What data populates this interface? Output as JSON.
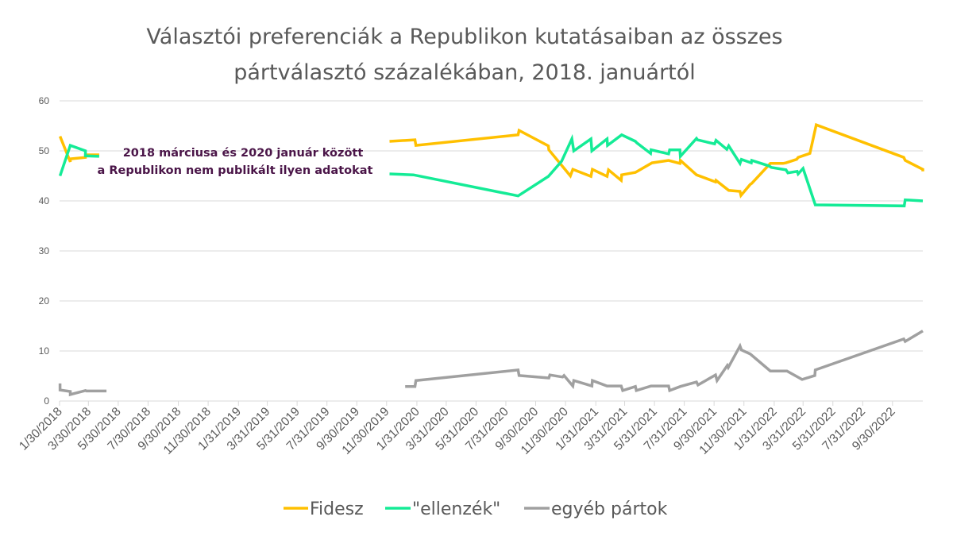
{
  "chart_data": {
    "type": "line",
    "title": [
      "Választói preferenciák a Republikon kutatásaiban az összes",
      "pártválasztó százalékában, 2018. januártól"
    ],
    "xlabel": "",
    "ylabel": "",
    "ylim": [
      0,
      60
    ],
    "yticks": [
      0,
      10,
      20,
      30,
      40,
      50,
      60
    ],
    "xlim": [
      "2018-01-30",
      "2022-12-01"
    ],
    "xtick_labels": [
      "1/30/2018",
      "3/30/2018",
      "5/30/2018",
      "7/30/2018",
      "9/30/2018",
      "11/30/2018",
      "1/31/2019",
      "3/31/2019",
      "5/31/2019",
      "7/31/2019",
      "9/30/2019",
      "11/30/2019",
      "1/31/2020",
      "3/31/2020",
      "5/31/2020",
      "7/31/2020",
      "9/30/2020",
      "11/30/2020",
      "1/31/2021",
      "3/31/2021",
      "5/31/2021",
      "7/31/2021",
      "9/30/2021",
      "11/30/2021",
      "1/31/2022",
      "3/31/2022",
      "5/31/2022",
      "7/31/2022",
      "9/30/2022"
    ],
    "grid": true,
    "legend": "bottom",
    "annotation": [
      "2018 márciusa és 2020 január között",
      "a Republikon nem publikált ilyen adatokat"
    ],
    "series": [
      {
        "name": "Fidesz",
        "color": "#FFC000",
        "segments": [
          [
            [
              "2018-01-31",
              52.9
            ],
            [
              "2018-02-21",
              47.8
            ],
            [
              "2018-02-21",
              48.4
            ],
            [
              "2018-03-24",
              48.7
            ],
            [
              "2018-03-24",
              49.2
            ],
            [
              "2018-04-21",
              49.2
            ]
          ],
          [
            [
              "2019-12-06",
              51.9
            ],
            [
              "2020-01-27",
              52.2
            ],
            [
              "2020-01-29",
              51.1
            ],
            [
              "2020-08-25",
              53.2
            ],
            [
              "2020-08-27",
              54.1
            ],
            [
              "2020-10-26",
              51.0
            ],
            [
              "2020-10-27",
              50.2
            ],
            [
              "2020-12-10",
              45.0
            ],
            [
              "2020-12-15",
              46.3
            ],
            [
              "2021-01-21",
              44.9
            ],
            [
              "2021-01-24",
              46.3
            ],
            [
              "2021-02-23",
              44.9
            ],
            [
              "2021-02-26",
              46.2
            ],
            [
              "2021-03-24",
              44.1
            ],
            [
              "2021-03-25",
              45.2
            ],
            [
              "2021-04-22",
              45.7
            ],
            [
              "2021-05-26",
              47.6
            ],
            [
              "2021-06-29",
              48.1
            ],
            [
              "2021-07-22",
              47.5
            ],
            [
              "2021-07-23",
              48.1
            ],
            [
              "2021-08-25",
              45.2
            ],
            [
              "2021-10-03",
              43.8
            ],
            [
              "2021-10-04",
              44.1
            ],
            [
              "2021-10-30",
              42.1
            ],
            [
              "2021-11-22",
              41.9
            ],
            [
              "2021-11-24",
              41.1
            ],
            [
              "2021-12-13",
              43.3
            ],
            [
              "2021-12-16",
              43.5
            ],
            [
              "2022-01-23",
              47.5
            ],
            [
              "2022-02-18",
              47.5
            ],
            [
              "2022-02-24",
              47.6
            ],
            [
              "2022-03-18",
              48.3
            ],
            [
              "2022-03-21",
              48.7
            ],
            [
              "2022-04-14",
              49.5
            ],
            [
              "2022-04-27",
              55.2
            ],
            [
              "2022-10-23",
              48.7
            ],
            [
              "2022-10-26",
              48.1
            ],
            [
              "2022-12-01",
              46.3
            ],
            [
              "2022-12-01",
              45.9
            ]
          ]
        ]
      },
      {
        "name": "\"ellenzék\"",
        "color": "#14EB96",
        "segments": [
          [
            [
              "2018-01-31",
              45.0
            ],
            [
              "2018-02-21",
              51.1
            ],
            [
              "2018-03-24",
              50.0
            ],
            [
              "2018-03-24",
              49.0
            ],
            [
              "2018-04-21",
              48.9
            ]
          ],
          [
            [
              "2019-12-06",
              45.4
            ],
            [
              "2020-01-24",
              45.2
            ],
            [
              "2020-08-25",
              41.0
            ],
            [
              "2020-10-26",
              44.9
            ],
            [
              "2020-11-22",
              47.9
            ],
            [
              "2020-12-13",
              52.4
            ],
            [
              "2020-12-17",
              50.0
            ],
            [
              "2021-01-21",
              52.4
            ],
            [
              "2021-01-23",
              50.0
            ],
            [
              "2021-02-23",
              52.4
            ],
            [
              "2021-02-24",
              51.1
            ],
            [
              "2021-03-25",
              53.2
            ],
            [
              "2021-04-22",
              51.9
            ],
            [
              "2021-04-25",
              51.6
            ],
            [
              "2021-05-23",
              49.5
            ],
            [
              "2021-05-24",
              50.2
            ],
            [
              "2021-06-29",
              49.4
            ],
            [
              "2021-07-01",
              50.2
            ],
            [
              "2021-07-22",
              50.2
            ],
            [
              "2021-07-23",
              48.9
            ],
            [
              "2021-08-25",
              52.5
            ],
            [
              "2021-08-27",
              52.2
            ],
            [
              "2021-10-01",
              51.4
            ],
            [
              "2021-10-04",
              52.1
            ],
            [
              "2021-10-26",
              50.3
            ],
            [
              "2021-10-30",
              51.0
            ],
            [
              "2021-11-22",
              47.5
            ],
            [
              "2021-11-25",
              48.3
            ],
            [
              "2021-12-15",
              47.6
            ],
            [
              "2021-12-16",
              48.1
            ],
            [
              "2022-01-20",
              47.0
            ],
            [
              "2022-01-25",
              46.7
            ],
            [
              "2022-02-24",
              46.2
            ],
            [
              "2022-02-28",
              45.6
            ],
            [
              "2022-03-19",
              45.9
            ],
            [
              "2022-03-21",
              45.4
            ],
            [
              "2022-03-31",
              46.5
            ],
            [
              "2022-04-25",
              39.2
            ],
            [
              "2022-10-24",
              39.0
            ],
            [
              "2022-10-26",
              40.2
            ],
            [
              "2022-12-01",
              40.0
            ]
          ]
        ]
      },
      {
        "name": "egyéb pártok",
        "color": "#A0A0A0",
        "segments": [
          [
            [
              "2018-01-31",
              3.5
            ],
            [
              "2018-01-31",
              2.2
            ],
            [
              "2018-02-21",
              1.9
            ],
            [
              "2018-02-21",
              1.3
            ],
            [
              "2018-03-24",
              2.1
            ],
            [
              "2018-03-26",
              2.0
            ],
            [
              "2018-05-06",
              2.0
            ]
          ],
          [
            [
              "2020-01-07",
              2.9
            ],
            [
              "2020-01-27",
              2.9
            ],
            [
              "2020-01-29",
              4.1
            ],
            [
              "2020-08-25",
              6.2
            ],
            [
              "2020-08-27",
              5.1
            ],
            [
              "2020-10-27",
              4.6
            ],
            [
              "2020-10-29",
              5.2
            ],
            [
              "2020-11-24",
              4.8
            ],
            [
              "2020-11-27",
              5.1
            ],
            [
              "2020-12-15",
              3.0
            ],
            [
              "2020-12-17",
              4.1
            ],
            [
              "2021-01-23",
              3.0
            ],
            [
              "2021-01-24",
              4.1
            ],
            [
              "2021-02-23",
              3.0
            ],
            [
              "2021-03-24",
              3.0
            ],
            [
              "2021-03-27",
              2.1
            ],
            [
              "2021-04-22",
              2.9
            ],
            [
              "2021-04-24",
              2.1
            ],
            [
              "2021-05-24",
              3.0
            ],
            [
              "2021-06-29",
              3.0
            ],
            [
              "2021-07-01",
              2.1
            ],
            [
              "2021-07-23",
              2.9
            ],
            [
              "2021-08-25",
              3.8
            ],
            [
              "2021-08-28",
              3.2
            ],
            [
              "2021-10-03",
              5.2
            ],
            [
              "2021-10-06",
              4.1
            ],
            [
              "2021-10-27",
              7.1
            ],
            [
              "2021-10-29",
              6.7
            ],
            [
              "2021-11-22",
              11.0
            ],
            [
              "2021-11-25",
              10.2
            ],
            [
              "2021-12-13",
              9.4
            ],
            [
              "2022-01-23",
              6.0
            ],
            [
              "2022-02-26",
              6.0
            ],
            [
              "2022-03-29",
              4.3
            ],
            [
              "2022-04-24",
              5.1
            ],
            [
              "2022-04-25",
              6.2
            ],
            [
              "2022-10-23",
              12.4
            ],
            [
              "2022-10-26",
              11.9
            ],
            [
              "2022-12-01",
              14.0
            ]
          ]
        ]
      }
    ]
  }
}
